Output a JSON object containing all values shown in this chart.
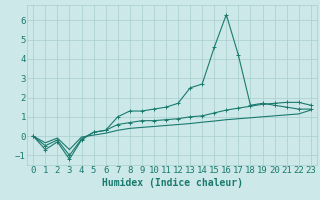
{
  "x": [
    0,
    1,
    2,
    3,
    4,
    5,
    6,
    7,
    8,
    9,
    10,
    11,
    12,
    13,
    14,
    15,
    16,
    17,
    18,
    19,
    20,
    21,
    22,
    23
  ],
  "line1": [
    0.0,
    -0.7,
    -0.3,
    -1.2,
    -0.2,
    0.2,
    0.3,
    1.0,
    1.3,
    1.3,
    1.4,
    1.5,
    1.7,
    2.5,
    2.7,
    4.6,
    6.3,
    4.2,
    1.6,
    1.7,
    1.6,
    1.5,
    1.4,
    1.4
  ],
  "line2": [
    0.0,
    -0.5,
    -0.2,
    -1.0,
    -0.15,
    0.2,
    0.3,
    0.6,
    0.7,
    0.8,
    0.8,
    0.85,
    0.9,
    1.0,
    1.05,
    1.2,
    1.35,
    1.45,
    1.55,
    1.65,
    1.7,
    1.75,
    1.75,
    1.6
  ],
  "line3": [
    0.0,
    -0.35,
    -0.1,
    -0.7,
    -0.05,
    0.05,
    0.15,
    0.3,
    0.4,
    0.45,
    0.5,
    0.55,
    0.6,
    0.65,
    0.72,
    0.78,
    0.85,
    0.9,
    0.95,
    1.0,
    1.05,
    1.1,
    1.15,
    1.35
  ],
  "line_color": "#1a7a6e",
  "bg_color": "#cce8e8",
  "grid_color": "#aacece",
  "xlabel": "Humidex (Indice chaleur)",
  "xlabel_fontsize": 7,
  "tick_fontsize": 6.5,
  "ylim": [
    -1.5,
    6.8
  ],
  "xlim": [
    -0.5,
    23.5
  ],
  "yticks": [
    -1,
    0,
    1,
    2,
    3,
    4,
    5,
    6
  ],
  "xticks": [
    0,
    1,
    2,
    3,
    4,
    5,
    6,
    7,
    8,
    9,
    10,
    11,
    12,
    13,
    14,
    15,
    16,
    17,
    18,
    19,
    20,
    21,
    22,
    23
  ]
}
